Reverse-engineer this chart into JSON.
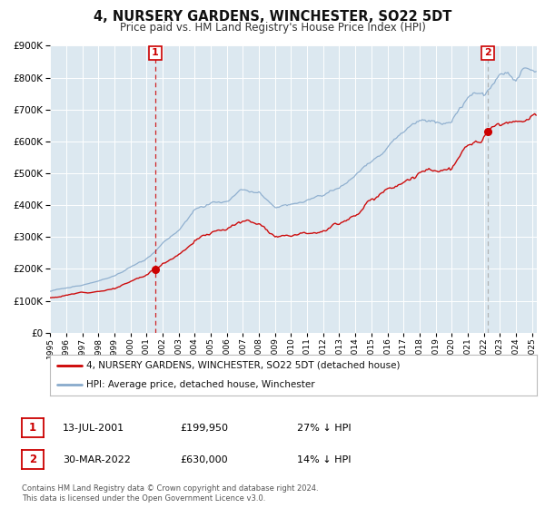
{
  "title": "4, NURSERY GARDENS, WINCHESTER, SO22 5DT",
  "subtitle": "Price paid vs. HM Land Registry's House Price Index (HPI)",
  "red_label": "4, NURSERY GARDENS, WINCHESTER, SO22 5DT (detached house)",
  "blue_label": "HPI: Average price, detached house, Winchester",
  "marker1_date": "13-JUL-2001",
  "marker1_price": 199950,
  "marker1_note": "27% ↓ HPI",
  "marker1_x": 2001.54,
  "marker2_date": "30-MAR-2022",
  "marker2_price": 630000,
  "marker2_note": "14% ↓ HPI",
  "marker2_x": 2022.24,
  "footnote1": "Contains HM Land Registry data © Crown copyright and database right 2024.",
  "footnote2": "This data is licensed under the Open Government Licence v3.0.",
  "ylim": [
    0,
    900000
  ],
  "xlim": [
    1995.0,
    2025.3
  ],
  "red_color": "#cc0000",
  "blue_color": "#88aacc",
  "vline1_color": "#cc0000",
  "vline2_color": "#aaaaaa",
  "background_color": "#ffffff",
  "plot_bg_color": "#dce8f0",
  "grid_color": "#ffffff"
}
